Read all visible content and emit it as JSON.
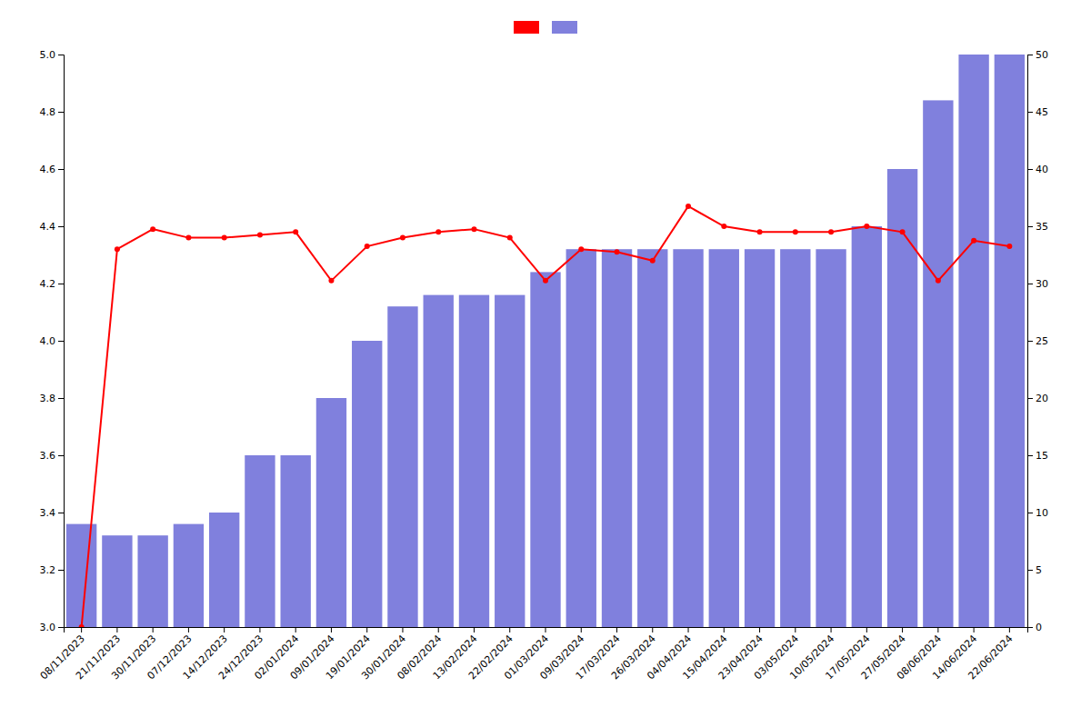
{
  "chart_data": {
    "type": "bar",
    "categories": [
      "08/11/2023",
      "21/11/2023",
      "30/11/2023",
      "07/12/2023",
      "14/12/2023",
      "24/12/2023",
      "02/01/2024",
      "09/01/2024",
      "19/01/2024",
      "30/01/2024",
      "08/02/2024",
      "13/02/2024",
      "22/02/2024",
      "01/03/2024",
      "09/03/2024",
      "17/03/2024",
      "26/03/2024",
      "04/04/2024",
      "15/04/2024",
      "23/04/2024",
      "03/05/2024",
      "10/05/2024",
      "17/05/2024",
      "27/05/2024",
      "08/06/2024",
      "14/06/2024",
      "22/06/2024"
    ],
    "series": [
      {
        "type": "line",
        "color": "#ff0000",
        "marker": "circle",
        "values": [
          3.0,
          4.32,
          4.39,
          4.36,
          4.36,
          4.37,
          4.38,
          4.21,
          4.33,
          4.36,
          4.38,
          4.39,
          4.36,
          4.21,
          4.32,
          4.31,
          4.28,
          4.47,
          4.4,
          4.38,
          4.38,
          4.38,
          4.4,
          4.38,
          4.21,
          4.35,
          4.33
        ]
      },
      {
        "type": "bar",
        "color": "#8080dd",
        "axis": "y2",
        "values": [
          9,
          8,
          8,
          9,
          10,
          15,
          15,
          20,
          25,
          28,
          29,
          29,
          29,
          31,
          33,
          33,
          33,
          33,
          33,
          33,
          33,
          33,
          35,
          40,
          46,
          50,
          50
        ]
      }
    ],
    "ylim": [
      3.0,
      5.0
    ],
    "yticks": [
      {
        "value": 3.0,
        "label": "3.0"
      },
      3.2,
      3.4,
      3.6,
      3.8,
      {
        "value": 4.0,
        "label": "4.0"
      },
      4.2,
      4.4,
      4.6,
      4.8,
      {
        "value": 5.0,
        "label": "5.0"
      }
    ],
    "y2lim": [
      0,
      50
    ],
    "y2ticks": [
      0,
      5,
      10,
      15,
      20,
      25,
      30,
      35,
      40,
      45,
      50
    ],
    "grid": false,
    "legend": "top"
  }
}
